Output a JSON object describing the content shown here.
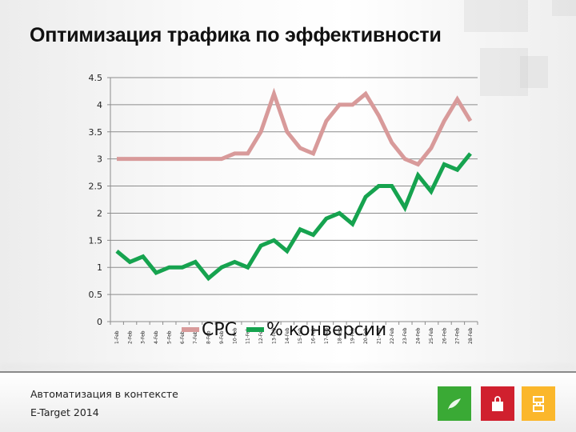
{
  "title": "Оптимизация трафика по эффективности",
  "footer": {
    "line1": "Автоматизация в контексте",
    "line2": "E-Target 2014",
    "icons": [
      {
        "name": "leaf-icon",
        "color": "#3aaa35"
      },
      {
        "name": "shopping-bag-icon",
        "color": "#d0202e"
      },
      {
        "name": "bracket-logo-icon",
        "color": "#fbb72b"
      }
    ]
  },
  "legend": [
    {
      "label": "CPC",
      "color": "#d89a9a"
    },
    {
      "label": "% конверсии",
      "color": "#16a34f"
    }
  ],
  "chart_data": {
    "type": "line",
    "title": "Оптимизация трафика по эффективности",
    "xlabel": "",
    "ylabel": "",
    "ylim": [
      0,
      4.5
    ],
    "yticks": [
      0,
      0.5,
      1,
      1.5,
      2,
      2.5,
      3,
      3.5,
      4,
      4.5
    ],
    "grid": true,
    "legend_position": "bottom",
    "categories": [
      "1-Feb",
      "2-Feb",
      "3-Feb",
      "4-Feb",
      "5-Feb",
      "6-Feb",
      "7-Feb",
      "8-Feb",
      "9-Feb",
      "10-Feb",
      "11-Feb",
      "12-Feb",
      "13-Feb",
      "14-Feb",
      "15-Feb",
      "16-Feb",
      "17-Feb",
      "18-Feb",
      "19-Feb",
      "20-Feb",
      "21-Feb",
      "22-Feb",
      "23-Feb",
      "24-Feb",
      "25-Feb",
      "26-Feb",
      "27-Feb",
      "28-Feb"
    ],
    "series": [
      {
        "name": "CPC",
        "color": "#d89a9a",
        "values": [
          3.0,
          3.0,
          3.0,
          3.0,
          3.0,
          3.0,
          3.0,
          3.0,
          3.0,
          3.1,
          3.1,
          3.5,
          4.2,
          3.5,
          3.2,
          3.1,
          3.7,
          4.0,
          4.0,
          4.2,
          3.8,
          3.3,
          3.0,
          2.9,
          3.2,
          3.7,
          4.1,
          3.7
        ]
      },
      {
        "name": "% конверсии",
        "color": "#16a34f",
        "values": [
          1.3,
          1.1,
          1.2,
          0.9,
          1.0,
          1.0,
          1.1,
          0.8,
          1.0,
          1.1,
          1.0,
          1.4,
          1.5,
          1.3,
          1.7,
          1.6,
          1.9,
          2.0,
          1.8,
          2.3,
          2.5,
          2.5,
          2.1,
          2.7,
          2.4,
          2.9,
          2.8,
          3.1
        ]
      }
    ]
  }
}
